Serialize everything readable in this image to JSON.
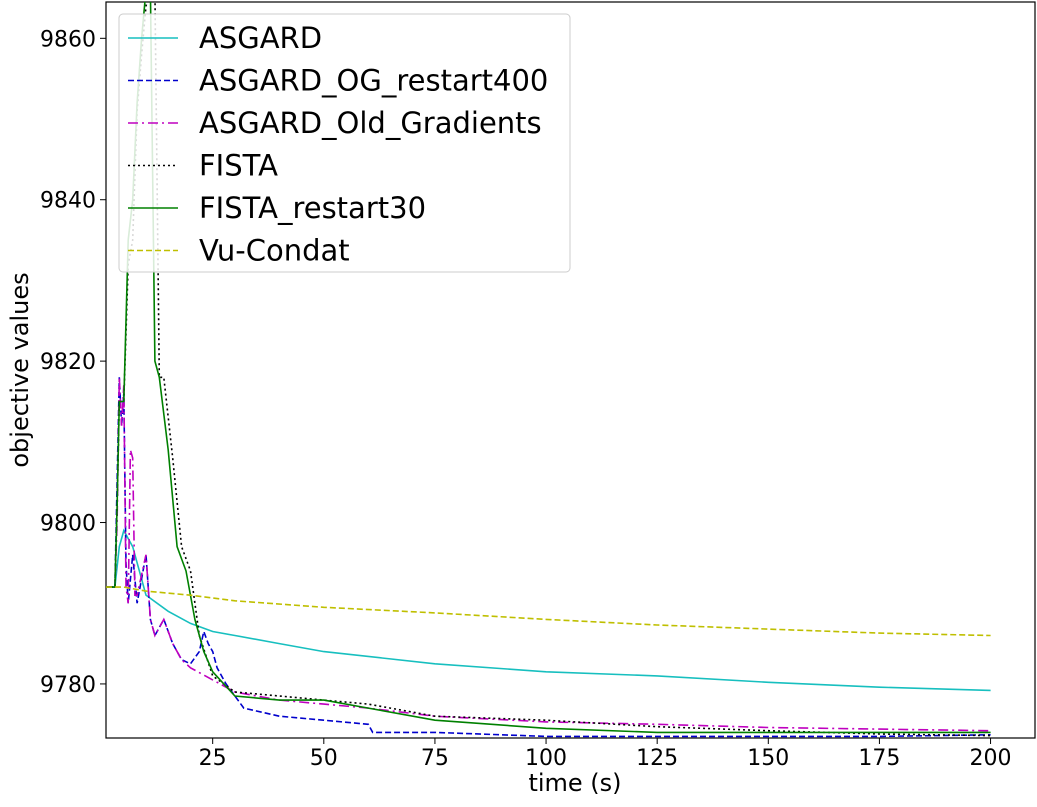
{
  "chart_data": {
    "type": "line",
    "title": "",
    "xlabel": "time (s)",
    "ylabel": "objective values",
    "xlim": [
      1,
      210
    ],
    "ylim": [
      9773.3,
      9864.5
    ],
    "xticks": [
      "25",
      "50",
      "75",
      "100",
      "125",
      "150",
      "175",
      "200"
    ],
    "yticks": [
      "9780",
      "9800",
      "9820",
      "9840",
      "9860"
    ],
    "xtick_values": [
      25,
      50,
      75,
      100,
      125,
      150,
      175,
      200
    ],
    "ytick_values": [
      9780,
      9800,
      9820,
      9840,
      9860
    ],
    "grid": false,
    "legend_position": "top-left",
    "series": [
      {
        "name": "ASGARD",
        "color": "#17bfbf",
        "dash": "solid",
        "points": [
          [
            1,
            9792
          ],
          [
            3,
            9792
          ],
          [
            4,
            9797
          ],
          [
            5,
            9799
          ],
          [
            7,
            9797
          ],
          [
            10,
            9791
          ],
          [
            15,
            9789
          ],
          [
            20,
            9787.5
          ],
          [
            25,
            9786.5
          ],
          [
            30,
            9786
          ],
          [
            40,
            9785
          ],
          [
            50,
            9784
          ],
          [
            75,
            9782.5
          ],
          [
            100,
            9781.5
          ],
          [
            125,
            9781
          ],
          [
            150,
            9780.2
          ],
          [
            175,
            9779.6
          ],
          [
            200,
            9779.2
          ]
        ]
      },
      {
        "name": "ASGARD_OG_restart400",
        "color": "#0000cc",
        "dash": "6,3",
        "points": [
          [
            1,
            9792
          ],
          [
            3,
            9792
          ],
          [
            3.5,
            9805
          ],
          [
            4,
            9818
          ],
          [
            4.5,
            9812
          ],
          [
            5,
            9816
          ],
          [
            5.5,
            9795
          ],
          [
            6,
            9790
          ],
          [
            7,
            9796
          ],
          [
            8,
            9790
          ],
          [
            10,
            9796
          ],
          [
            11,
            9788
          ],
          [
            12,
            9786
          ],
          [
            14,
            9788
          ],
          [
            16,
            9785
          ],
          [
            18,
            9783
          ],
          [
            20,
            9782.5
          ],
          [
            22,
            9784
          ],
          [
            23,
            9786.5
          ],
          [
            24,
            9785
          ],
          [
            25,
            9784
          ],
          [
            26,
            9782
          ],
          [
            28,
            9780
          ],
          [
            32,
            9777
          ],
          [
            40,
            9776
          ],
          [
            50,
            9775.5
          ],
          [
            60,
            9775
          ],
          [
            61,
            9774
          ],
          [
            75,
            9774
          ],
          [
            100,
            9773.5
          ],
          [
            125,
            9773.5
          ],
          [
            150,
            9773.5
          ],
          [
            175,
            9773.5
          ],
          [
            200,
            9773.7
          ]
        ]
      },
      {
        "name": "ASGARD_Old_Gradients",
        "color": "#bf00bf",
        "dash": "10,4,2,4",
        "points": [
          [
            1,
            9792
          ],
          [
            3,
            9792
          ],
          [
            3.5,
            9800
          ],
          [
            4,
            9818
          ],
          [
            4.5,
            9812
          ],
          [
            5,
            9817
          ],
          [
            5.5,
            9792
          ],
          [
            6,
            9790
          ],
          [
            6.5,
            9809
          ],
          [
            7,
            9808
          ],
          [
            7.5,
            9791
          ],
          [
            8,
            9791
          ],
          [
            10,
            9796
          ],
          [
            11,
            9788
          ],
          [
            12,
            9786
          ],
          [
            14,
            9788
          ],
          [
            16,
            9785
          ],
          [
            18,
            9783
          ],
          [
            20,
            9782
          ],
          [
            25,
            9780.5
          ],
          [
            30,
            9779
          ],
          [
            40,
            9778
          ],
          [
            50,
            9777.5
          ],
          [
            60,
            9777
          ],
          [
            75,
            9776
          ],
          [
            100,
            9775.3
          ],
          [
            125,
            9775
          ],
          [
            150,
            9774.6
          ],
          [
            175,
            9774.4
          ],
          [
            200,
            9774.2
          ]
        ]
      },
      {
        "name": "FISTA",
        "color": "#000000",
        "dash": "2,3",
        "points": [
          [
            1,
            9792
          ],
          [
            3,
            9792
          ],
          [
            3.5,
            9802
          ],
          [
            4,
            9815
          ],
          [
            5,
            9815
          ],
          [
            6,
            9832
          ],
          [
            7,
            9835
          ],
          [
            8,
            9851
          ],
          [
            9,
            9858
          ],
          [
            10,
            9864
          ],
          [
            11,
            9866
          ],
          [
            12,
            9866
          ],
          [
            13,
            9818
          ],
          [
            14,
            9818
          ],
          [
            16,
            9808
          ],
          [
            18,
            9797
          ],
          [
            20,
            9794
          ],
          [
            22,
            9786
          ],
          [
            25,
            9781
          ],
          [
            30,
            9779
          ],
          [
            40,
            9778.5
          ],
          [
            50,
            9778
          ],
          [
            60,
            9777.5
          ],
          [
            75,
            9776
          ],
          [
            100,
            9775.5
          ],
          [
            125,
            9774.7
          ],
          [
            150,
            9774.2
          ],
          [
            175,
            9773.8
          ],
          [
            200,
            9773.6
          ]
        ]
      },
      {
        "name": "FISTA_restart30",
        "color": "#008000",
        "dash": "solid",
        "points": [
          [
            1,
            9792
          ],
          [
            3,
            9792
          ],
          [
            3.5,
            9802
          ],
          [
            4,
            9815
          ],
          [
            5,
            9815
          ],
          [
            6,
            9835
          ],
          [
            7,
            9840
          ],
          [
            8,
            9852
          ],
          [
            9,
            9860
          ],
          [
            10,
            9866
          ],
          [
            11,
            9866
          ],
          [
            12,
            9820
          ],
          [
            13,
            9818
          ],
          [
            15,
            9809
          ],
          [
            17,
            9797
          ],
          [
            19,
            9794
          ],
          [
            21,
            9788
          ],
          [
            23,
            9784
          ],
          [
            25,
            9781.5
          ],
          [
            30,
            9778.5
          ],
          [
            40,
            9778
          ],
          [
            50,
            9778
          ],
          [
            60,
            9777
          ],
          [
            75,
            9775.5
          ],
          [
            100,
            9774.5
          ],
          [
            125,
            9774
          ],
          [
            150,
            9774
          ],
          [
            175,
            9774
          ],
          [
            200,
            9774
          ]
        ]
      },
      {
        "name": "Vu-Condat",
        "color": "#bfbf00",
        "dash": "6,3",
        "points": [
          [
            1,
            9792
          ],
          [
            5,
            9792
          ],
          [
            10,
            9791.5
          ],
          [
            20,
            9791
          ],
          [
            30,
            9790.3
          ],
          [
            50,
            9789.5
          ],
          [
            75,
            9788.8
          ],
          [
            100,
            9788
          ],
          [
            125,
            9787.3
          ],
          [
            150,
            9786.8
          ],
          [
            175,
            9786.3
          ],
          [
            200,
            9786
          ]
        ]
      }
    ]
  }
}
